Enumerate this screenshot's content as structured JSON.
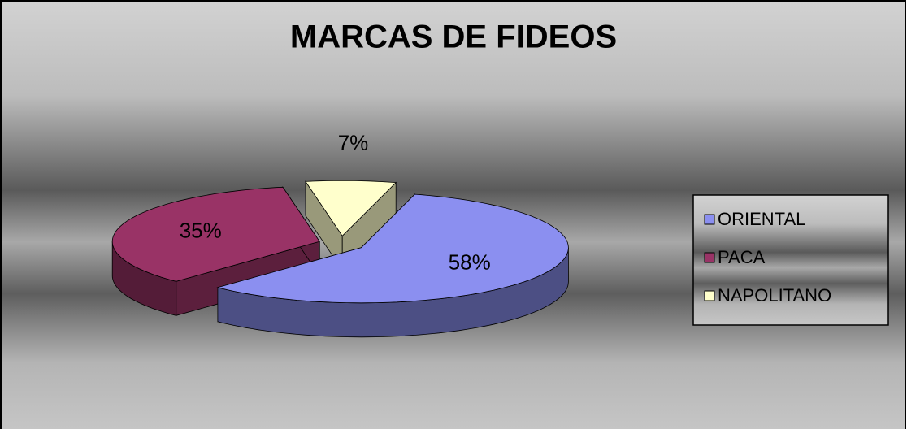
{
  "chart_data": {
    "type": "pie",
    "title": "MARCAS DE FIDEOS",
    "categories": [
      "ORIENTAL",
      "PACA",
      "NAPOLITANO"
    ],
    "values": [
      58,
      35,
      7
    ],
    "value_labels": [
      "58%",
      "35%",
      "7%"
    ],
    "colors": [
      "#8b8ff0",
      "#993366",
      "#ffffcc"
    ],
    "legend": "right"
  }
}
